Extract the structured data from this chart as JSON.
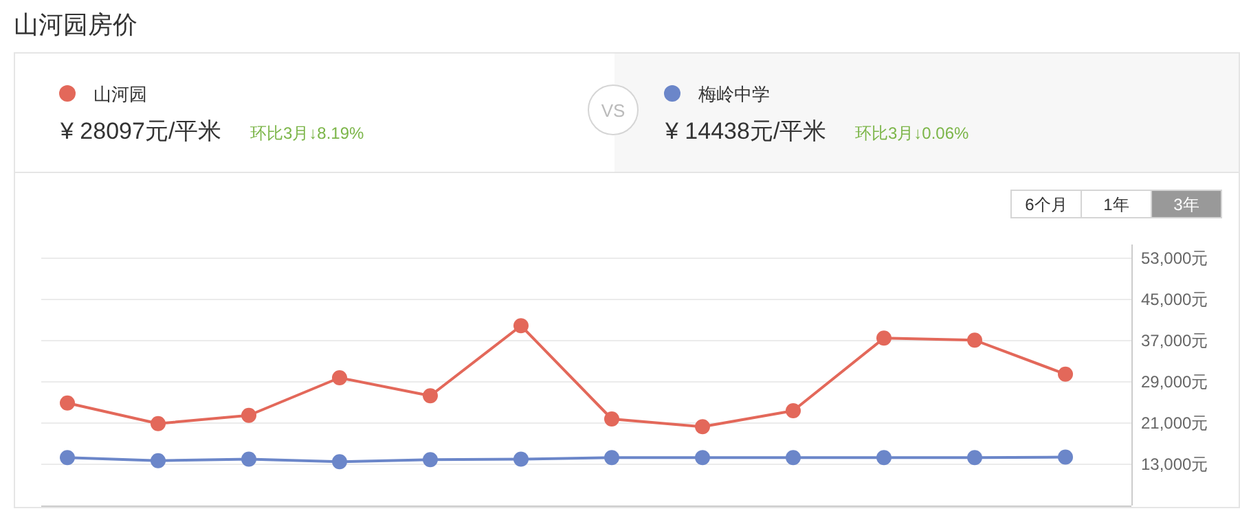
{
  "chart_data": {
    "type": "line",
    "title": "山河园房价",
    "categories": [
      null,
      null,
      null,
      null,
      null,
      null,
      null,
      null,
      null,
      null,
      null,
      null
    ],
    "series": [
      {
        "name": "山河园",
        "color": "#e3685a",
        "values": [
          24900,
          20900,
          22500,
          29800,
          26300,
          39900,
          21800,
          20300,
          23400,
          37500,
          37100,
          30500
        ]
      },
      {
        "name": "梅岭中学",
        "color": "#6b86c9",
        "values": [
          14300,
          13700,
          14000,
          13500,
          13900,
          14000,
          14300,
          14300,
          14300,
          14300,
          14300,
          14400
        ]
      }
    ],
    "ylim": [
      5000,
      53000
    ],
    "yticks": [
      {
        "value": 13000,
        "label": "13,000元"
      },
      {
        "value": 21000,
        "label": "21,000元"
      },
      {
        "value": 29000,
        "label": "29,000元"
      },
      {
        "value": 37000,
        "label": "37,000元"
      },
      {
        "value": 45000,
        "label": "45,000元"
      },
      {
        "value": 53000,
        "label": "53,000元"
      }
    ],
    "grid": "y",
    "legend": "top",
    "marker": "circle",
    "line_style": "solid",
    "annotations": [
      "¥ 28097元/平米",
      "环比3月↓8.19%",
      "¥ 14438元/平米",
      "环比3月↓0.06%",
      "VS",
      "6个月",
      "1年",
      "3年"
    ]
  }
}
